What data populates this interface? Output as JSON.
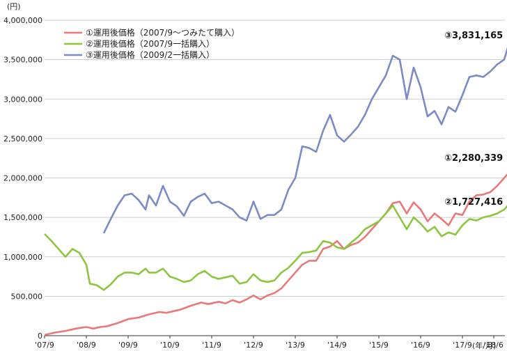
{
  "chart_data": {
    "type": "line",
    "y_unit": "(円)",
    "x_unit": "(年/月)",
    "ylim": [
      0,
      4000000
    ],
    "y_ticks": [
      "0",
      "500,000",
      "1,000,000",
      "1,500,000",
      "2,000,000",
      "2,500,000",
      "3,000,000",
      "3,500,000",
      "4,000,000"
    ],
    "x_ticks": [
      "'07/9",
      "'08/9",
      "'09/9",
      "'10/9",
      "'11/9",
      "'12/9",
      "'13/9",
      "'14/9",
      "'15/9",
      "'16/9",
      "'17/9",
      "'18/6"
    ],
    "grid": "horizontal",
    "legend_position": "top-left",
    "series": [
      {
        "name": "①運用後価格（2007/9〜つみたて購入）",
        "color": "#e8787a",
        "end_label": "①2,280,339",
        "points": [
          [
            0,
            10000
          ],
          [
            3,
            40000
          ],
          [
            6,
            60000
          ],
          [
            9,
            90000
          ],
          [
            12,
            110000
          ],
          [
            14,
            90000
          ],
          [
            16,
            110000
          ],
          [
            18,
            120000
          ],
          [
            21,
            160000
          ],
          [
            24,
            210000
          ],
          [
            27,
            230000
          ],
          [
            30,
            270000
          ],
          [
            33,
            300000
          ],
          [
            35,
            290000
          ],
          [
            37,
            310000
          ],
          [
            39,
            330000
          ],
          [
            42,
            380000
          ],
          [
            45,
            420000
          ],
          [
            47,
            400000
          ],
          [
            50,
            430000
          ],
          [
            52,
            410000
          ],
          [
            54,
            450000
          ],
          [
            56,
            420000
          ],
          [
            58,
            460000
          ],
          [
            60,
            510000
          ],
          [
            62,
            460000
          ],
          [
            64,
            510000
          ],
          [
            66,
            540000
          ],
          [
            68,
            600000
          ],
          [
            70,
            700000
          ],
          [
            72,
            800000
          ],
          [
            74,
            900000
          ],
          [
            76,
            950000
          ],
          [
            78,
            950000
          ],
          [
            80,
            1100000
          ],
          [
            82,
            1130000
          ],
          [
            84,
            1200000
          ],
          [
            86,
            1100000
          ],
          [
            88,
            1150000
          ],
          [
            90,
            1180000
          ],
          [
            92,
            1250000
          ],
          [
            94,
            1350000
          ],
          [
            96,
            1450000
          ],
          [
            98,
            1550000
          ],
          [
            100,
            1680000
          ],
          [
            102,
            1700000
          ],
          [
            104,
            1550000
          ],
          [
            106,
            1690000
          ],
          [
            108,
            1600000
          ],
          [
            110,
            1450000
          ],
          [
            112,
            1550000
          ],
          [
            114,
            1480000
          ],
          [
            116,
            1400000
          ],
          [
            118,
            1550000
          ],
          [
            120,
            1530000
          ],
          [
            122,
            1700000
          ],
          [
            124,
            1780000
          ],
          [
            126,
            1790000
          ],
          [
            128,
            1820000
          ],
          [
            130,
            1900000
          ],
          [
            132,
            2000000
          ],
          [
            134,
            2100000
          ],
          [
            136,
            2250000
          ],
          [
            138,
            2300000
          ],
          [
            140,
            2150000
          ],
          [
            142,
            2270000
          ],
          [
            143,
            2280339
          ]
        ]
      },
      {
        "name": "②運用後価格（2007/9一括購入）",
        "color": "#8cc63f",
        "end_label": "②1,727,416",
        "points": [
          [
            0,
            1290000
          ],
          [
            2,
            1200000
          ],
          [
            4,
            1100000
          ],
          [
            6,
            1000000
          ],
          [
            8,
            1100000
          ],
          [
            10,
            1050000
          ],
          [
            12,
            900000
          ],
          [
            13,
            660000
          ],
          [
            15,
            640000
          ],
          [
            17,
            580000
          ],
          [
            19,
            650000
          ],
          [
            21,
            750000
          ],
          [
            23,
            800000
          ],
          [
            25,
            800000
          ],
          [
            27,
            780000
          ],
          [
            29,
            850000
          ],
          [
            30,
            800000
          ],
          [
            32,
            800000
          ],
          [
            34,
            850000
          ],
          [
            36,
            750000
          ],
          [
            38,
            720000
          ],
          [
            40,
            680000
          ],
          [
            42,
            700000
          ],
          [
            44,
            780000
          ],
          [
            46,
            820000
          ],
          [
            48,
            750000
          ],
          [
            50,
            720000
          ],
          [
            52,
            740000
          ],
          [
            54,
            760000
          ],
          [
            56,
            660000
          ],
          [
            58,
            680000
          ],
          [
            60,
            780000
          ],
          [
            62,
            700000
          ],
          [
            64,
            680000
          ],
          [
            66,
            700000
          ],
          [
            68,
            800000
          ],
          [
            70,
            860000
          ],
          [
            72,
            950000
          ],
          [
            74,
            1050000
          ],
          [
            76,
            1060000
          ],
          [
            78,
            1080000
          ],
          [
            80,
            1200000
          ],
          [
            82,
            1180000
          ],
          [
            84,
            1120000
          ],
          [
            86,
            1100000
          ],
          [
            88,
            1180000
          ],
          [
            90,
            1250000
          ],
          [
            92,
            1350000
          ],
          [
            94,
            1400000
          ],
          [
            96,
            1450000
          ],
          [
            98,
            1550000
          ],
          [
            100,
            1650000
          ],
          [
            102,
            1500000
          ],
          [
            104,
            1350000
          ],
          [
            106,
            1500000
          ],
          [
            108,
            1420000
          ],
          [
            110,
            1320000
          ],
          [
            112,
            1380000
          ],
          [
            114,
            1260000
          ],
          [
            116,
            1310000
          ],
          [
            118,
            1280000
          ],
          [
            120,
            1400000
          ],
          [
            122,
            1480000
          ],
          [
            124,
            1460000
          ],
          [
            126,
            1500000
          ],
          [
            128,
            1520000
          ],
          [
            130,
            1550000
          ],
          [
            132,
            1600000
          ],
          [
            134,
            1700000
          ],
          [
            136,
            1760000
          ],
          [
            138,
            1780000
          ],
          [
            140,
            1680000
          ],
          [
            142,
            1730000
          ],
          [
            143,
            1727416
          ]
        ]
      },
      {
        "name": "③運用後価格（2009/2一括購入）",
        "color": "#7b8bc5",
        "end_label": "③3,831,165",
        "points": [
          [
            17,
            1300000
          ],
          [
            19,
            1480000
          ],
          [
            21,
            1650000
          ],
          [
            23,
            1780000
          ],
          [
            25,
            1800000
          ],
          [
            27,
            1720000
          ],
          [
            29,
            1600000
          ],
          [
            30,
            1780000
          ],
          [
            32,
            1650000
          ],
          [
            34,
            1900000
          ],
          [
            36,
            1700000
          ],
          [
            38,
            1640000
          ],
          [
            40,
            1520000
          ],
          [
            42,
            1700000
          ],
          [
            44,
            1760000
          ],
          [
            46,
            1800000
          ],
          [
            48,
            1680000
          ],
          [
            50,
            1700000
          ],
          [
            52,
            1650000
          ],
          [
            54,
            1600000
          ],
          [
            56,
            1500000
          ],
          [
            58,
            1460000
          ],
          [
            60,
            1700000
          ],
          [
            62,
            1480000
          ],
          [
            64,
            1530000
          ],
          [
            66,
            1530000
          ],
          [
            68,
            1600000
          ],
          [
            70,
            1850000
          ],
          [
            72,
            2000000
          ],
          [
            74,
            2400000
          ],
          [
            76,
            2380000
          ],
          [
            78,
            2330000
          ],
          [
            80,
            2600000
          ],
          [
            82,
            2800000
          ],
          [
            84,
            2540000
          ],
          [
            86,
            2460000
          ],
          [
            88,
            2550000
          ],
          [
            90,
            2650000
          ],
          [
            92,
            2800000
          ],
          [
            94,
            3000000
          ],
          [
            96,
            3150000
          ],
          [
            98,
            3300000
          ],
          [
            100,
            3550000
          ],
          [
            102,
            3500000
          ],
          [
            104,
            3000000
          ],
          [
            106,
            3400000
          ],
          [
            108,
            3150000
          ],
          [
            110,
            2780000
          ],
          [
            112,
            2850000
          ],
          [
            114,
            2680000
          ],
          [
            116,
            2900000
          ],
          [
            118,
            2840000
          ],
          [
            120,
            3050000
          ],
          [
            122,
            3280000
          ],
          [
            124,
            3300000
          ],
          [
            126,
            3280000
          ],
          [
            128,
            3350000
          ],
          [
            130,
            3440000
          ],
          [
            132,
            3500000
          ],
          [
            134,
            3800000
          ],
          [
            136,
            3900000
          ],
          [
            138,
            3960000
          ],
          [
            140,
            3700000
          ],
          [
            142,
            3860000
          ],
          [
            143,
            3831165
          ]
        ]
      }
    ]
  }
}
